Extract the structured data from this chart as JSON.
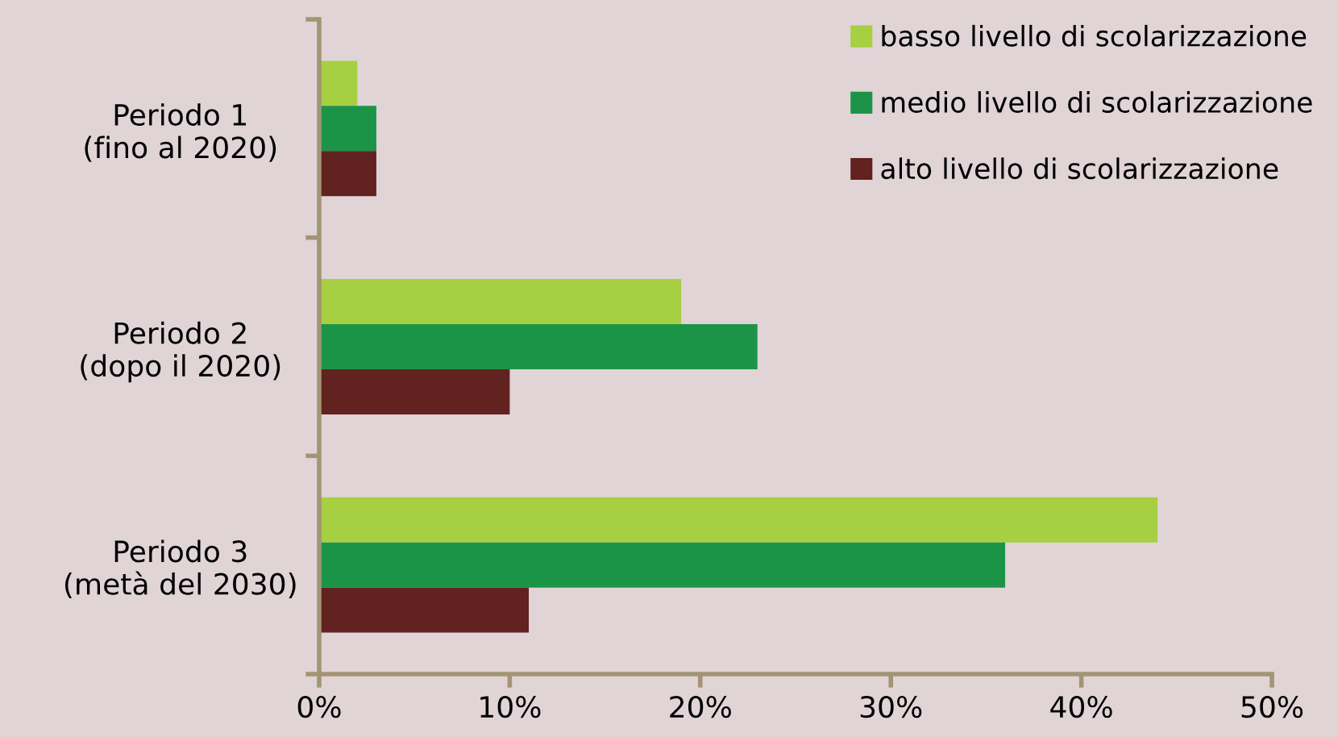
{
  "chart_data": {
    "type": "bar",
    "orientation": "horizontal",
    "categories": [
      "Periodo 1\n(fino al 2020)",
      "Periodo 2\n(dopo il 2020)",
      "Periodo 3\n(metà del 2030)"
    ],
    "series": [
      {
        "name": "basso livello di scolarizzazione",
        "color": "#a6cf42",
        "values": [
          2,
          19,
          44
        ]
      },
      {
        "name": "medio livello di scolarizzazione",
        "color": "#1c9447",
        "values": [
          3,
          23,
          36
        ]
      },
      {
        "name": "alto livello di scolarizzazione",
        "color": "#622220",
        "values": [
          3,
          10,
          11
        ]
      }
    ],
    "xlim": [
      0,
      50
    ],
    "xticks": [
      {
        "value": 0,
        "label": "0%"
      },
      {
        "value": 10,
        "label": "10%"
      },
      {
        "value": 20,
        "label": "20%"
      },
      {
        "value": 30,
        "label": "30%"
      },
      {
        "value": 40,
        "label": "40%"
      },
      {
        "value": 50,
        "label": "50%"
      }
    ],
    "grid": false,
    "legend": "top right"
  }
}
